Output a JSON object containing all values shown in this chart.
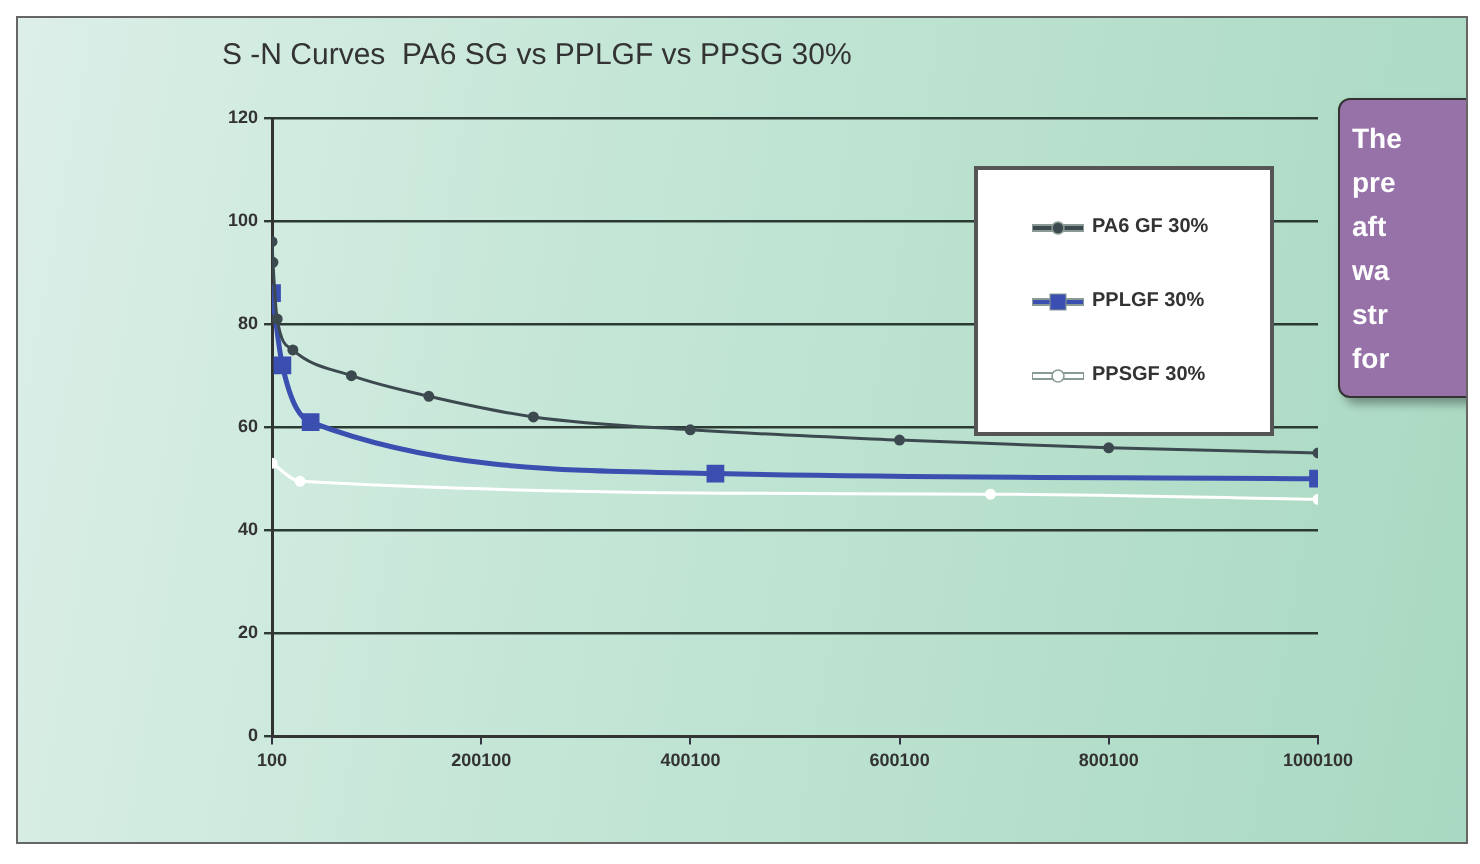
{
  "chart_data": {
    "type": "line",
    "title": "S -N Curves  PA6 SG vs PPLGF vs PPSG 30%",
    "xlim": [
      100,
      1000100
    ],
    "xticks": [
      100,
      200100,
      400100,
      600100,
      800100,
      1000100
    ],
    "ylim": [
      0,
      120
    ],
    "yticks": [
      0,
      20,
      40,
      60,
      80,
      100,
      120
    ],
    "grid": "y",
    "legend": "top right",
    "series": [
      {
        "name": "PA6 GF 30%",
        "color": "#3c4a50",
        "marker": "circle",
        "x": [
          100,
          1000,
          5000,
          20000,
          76000,
          150000,
          250000,
          400000,
          600000,
          800000,
          1000100
        ],
        "values": [
          96,
          92,
          81,
          75,
          70,
          66,
          62,
          59.5,
          57.5,
          56,
          55
        ]
      },
      {
        "name": "PPLGF 30%",
        "color": "#3a4fb0",
        "marker": "square",
        "x": [
          100,
          10000,
          37000,
          424000,
          1000100
        ],
        "values": [
          86,
          72,
          61,
          51,
          50
        ]
      },
      {
        "name": "PPSGF 30%",
        "color": "#ffffff",
        "marker": "circle",
        "x": [
          100,
          27000,
          687000,
          1000100
        ],
        "values": [
          53,
          49.5,
          47,
          46
        ]
      }
    ],
    "annotations": [
      "The pre aft wa str for"
    ]
  }
}
